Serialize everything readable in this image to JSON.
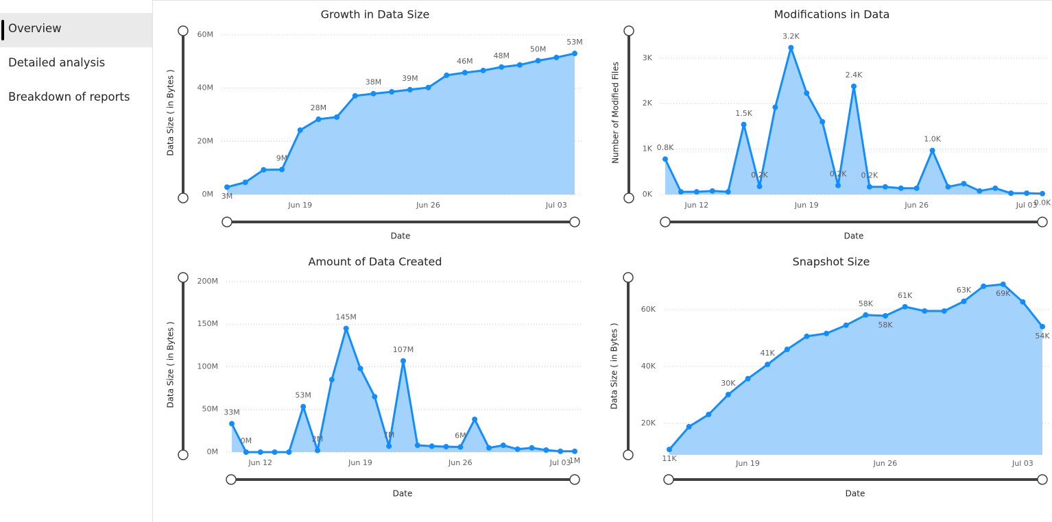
{
  "nav": {
    "items": [
      "Overview",
      "Detailed analysis",
      "Breakdown of reports"
    ],
    "selected": 0
  },
  "chart_data": [
    {
      "type": "area",
      "title": "Growth in Data Size",
      "x_label": "Date",
      "y_label": "Data Size ( in Bytes )",
      "x": [
        "Jun 15",
        "Jun 16",
        "Jun 17",
        "Jun 18",
        "Jun 19",
        "Jun 20",
        "Jun 21",
        "Jun 22",
        "Jun 23",
        "Jun 24",
        "Jun 25",
        "Jun 26",
        "Jun 27",
        "Jun 28",
        "Jun 29",
        "Jun 30",
        "Jul 01",
        "Jul 02",
        "Jul 03",
        "Jul 04"
      ],
      "xticks": [
        "Jun 19",
        "Jun 26",
        "Jul 03"
      ],
      "values": [
        2800000,
        4600000,
        9300000,
        9400000,
        24200000,
        28300000,
        29100000,
        37100000,
        37900000,
        38600000,
        39400000,
        40200000,
        44800000,
        45800000,
        46600000,
        47900000,
        48700000,
        50300000,
        51500000,
        53000000
      ],
      "value_labels": [
        "3M",
        null,
        null,
        "9M",
        null,
        "28M",
        null,
        null,
        "38M",
        null,
        "39M",
        null,
        null,
        "46M",
        null,
        "48M",
        null,
        "50M",
        null,
        "53M"
      ],
      "ylim": [
        0,
        61500000
      ],
      "yticks": [
        {
          "value": 0,
          "label": "0M"
        },
        {
          "value": 20000000,
          "label": "20M"
        },
        {
          "value": 40000000,
          "label": "40M"
        },
        {
          "value": 60000000,
          "label": "60M"
        }
      ],
      "color": "#118dff",
      "fill": "#a3d2fc",
      "grid": true
    },
    {
      "type": "area",
      "title": "Modifications in Data",
      "x_label": "Date",
      "y_label": "Number of Modified Files",
      "x": [
        "Jun 10",
        "Jun 11",
        "Jun 12",
        "Jun 13",
        "Jun 14",
        "Jun 15",
        "Jun 16",
        "Jun 17",
        "Jun 18",
        "Jun 19",
        "Jun 20",
        "Jun 21",
        "Jun 22",
        "Jun 23",
        "Jun 24",
        "Jun 25",
        "Jun 26",
        "Jun 27",
        "Jun 28",
        "Jun 29",
        "Jun 30",
        "Jul 01",
        "Jul 02",
        "Jul 03",
        "Jul 04"
      ],
      "xticks": [
        "Jun 12",
        "Jun 19",
        "Jun 26",
        "Jul 03"
      ],
      "values": [
        780,
        60,
        60,
        80,
        60,
        1540,
        180,
        1920,
        3230,
        2230,
        1600,
        200,
        2380,
        170,
        170,
        140,
        140,
        970,
        170,
        240,
        80,
        140,
        30,
        30,
        20
      ],
      "value_labels": [
        "0.8K",
        null,
        null,
        null,
        null,
        "1.5K",
        "0.2K",
        null,
        "3.2K",
        null,
        null,
        "0.2K",
        "2.4K",
        "0.2K",
        null,
        null,
        null,
        "1.0K",
        null,
        null,
        null,
        null,
        null,
        null,
        "0.0K"
      ],
      "ylim": [
        0,
        3600
      ],
      "yticks": [
        {
          "value": 0,
          "label": "0K"
        },
        {
          "value": 1000,
          "label": "1K"
        },
        {
          "value": 2000,
          "label": "2K"
        },
        {
          "value": 3000,
          "label": "3K"
        }
      ],
      "color": "#118dff",
      "fill": "#a3d2fc",
      "grid": true
    },
    {
      "type": "area",
      "title": "Amount of Data Created",
      "x_label": "Date",
      "y_label": "Data Size ( in Bytes )",
      "x": [
        "Jun 10",
        "Jun 11",
        "Jun 12",
        "Jun 13",
        "Jun 14",
        "Jun 15",
        "Jun 16",
        "Jun 17",
        "Jun 18",
        "Jun 19",
        "Jun 20",
        "Jun 21",
        "Jun 22",
        "Jun 23",
        "Jun 24",
        "Jun 25",
        "Jun 26",
        "Jun 27",
        "Jun 28",
        "Jun 29",
        "Jun 30",
        "Jul 01",
        "Jul 02",
        "Jul 03",
        "Jul 04"
      ],
      "xticks": [
        "Jun 12",
        "Jun 19",
        "Jun 26",
        "Jul 03"
      ],
      "values": [
        33300000,
        0,
        0,
        0,
        0,
        53300000,
        2000000,
        85000000,
        145000000,
        98000000,
        65000000,
        7000000,
        107000000,
        8000000,
        7000000,
        6400000,
        6000000,
        38500000,
        5000000,
        8000000,
        3500000,
        5000000,
        2400000,
        1000000,
        1000000
      ],
      "value_labels": [
        "33M",
        "0M",
        null,
        null,
        null,
        "53M",
        "2M",
        null,
        "145M",
        null,
        null,
        "7M",
        "107M",
        null,
        null,
        null,
        "6M",
        null,
        null,
        null,
        null,
        null,
        null,
        null,
        "1M"
      ],
      "ylim": [
        0,
        204800000
      ],
      "yticks": [
        {
          "value": 0,
          "label": "0M"
        },
        {
          "value": 50000000,
          "label": "50M"
        },
        {
          "value": 100000000,
          "label": "100M"
        },
        {
          "value": 150000000,
          "label": "150M"
        },
        {
          "value": 200000000,
          "label": "200M"
        }
      ],
      "color": "#118dff",
      "fill": "#a3d2fc",
      "grid": true
    },
    {
      "type": "area",
      "title": "Snapshot Size",
      "x_label": "Date",
      "y_label": "Data Size ( in Bytes )",
      "x": [
        "Jun 15",
        "Jun 16",
        "Jun 17",
        "Jun 18",
        "Jun 19",
        "Jun 20",
        "Jun 21",
        "Jun 22",
        "Jun 23",
        "Jun 24",
        "Jun 25",
        "Jun 26",
        "Jun 27",
        "Jun 28",
        "Jun 29",
        "Jun 30",
        "Jul 01",
        "Jul 02",
        "Jul 03",
        "Jul 04"
      ],
      "xticks": [
        "Jun 19",
        "Jun 26",
        "Jul 03"
      ],
      "values": [
        10800,
        18800,
        23100,
        30100,
        35700,
        40700,
        46000,
        50600,
        51600,
        54500,
        58100,
        57800,
        61000,
        59500,
        59500,
        62900,
        68200,
        68900,
        62700,
        54000
      ],
      "value_labels": [
        "11K",
        null,
        null,
        "30K",
        null,
        "41K",
        null,
        null,
        null,
        null,
        "58K",
        "58K",
        "61K",
        null,
        null,
        "63K",
        null,
        "69K",
        null,
        "54K"
      ],
      "ylim": [
        8900,
        71300
      ],
      "yticks": [
        {
          "value": 20000,
          "label": "20K"
        },
        {
          "value": 40000,
          "label": "40K"
        },
        {
          "value": 60000,
          "label": "60K"
        }
      ],
      "color": "#118dff",
      "fill": "#a3d2fc",
      "grid": true
    }
  ]
}
